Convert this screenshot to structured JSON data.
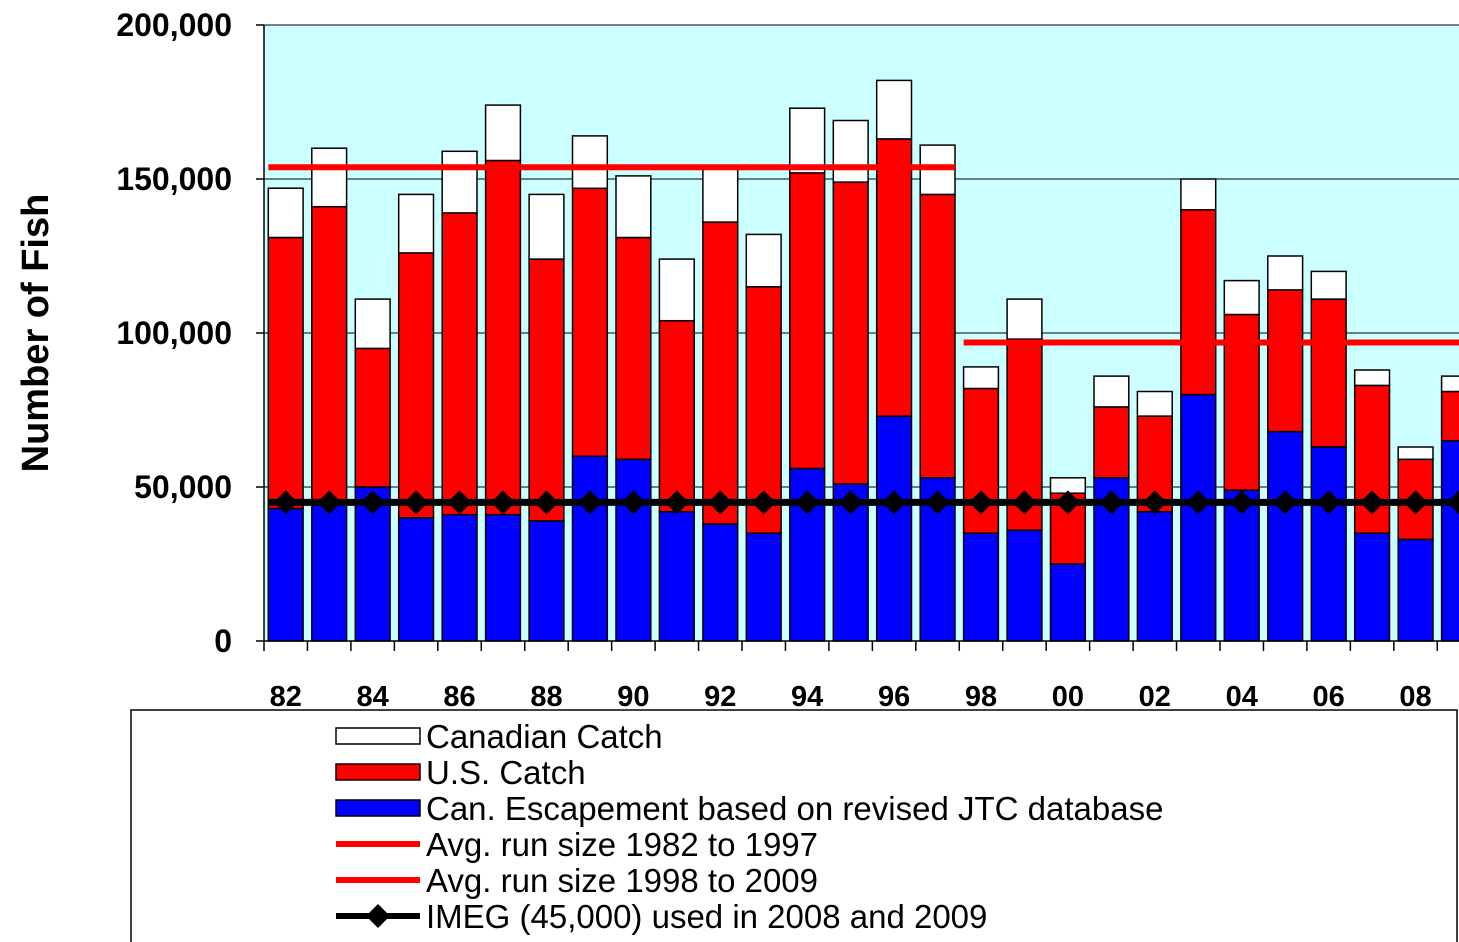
{
  "chart_data": {
    "type": "bar",
    "stacked": true,
    "title": "",
    "xlabel": "",
    "ylabel": "Number of Fish",
    "ylim": [
      0,
      200000
    ],
    "yticks": [
      0,
      50000,
      100000,
      150000,
      200000
    ],
    "ytick_labels": [
      "0",
      "50,000",
      "100,000",
      "150,000",
      "200,000"
    ],
    "grid": "horizontal",
    "plot_background": "#ccffff",
    "categories": [
      "82",
      "83",
      "84",
      "85",
      "86",
      "87",
      "88",
      "89",
      "90",
      "91",
      "92",
      "93",
      "94",
      "95",
      "96",
      "97",
      "98",
      "99",
      "00",
      "01",
      "02",
      "03",
      "04",
      "05",
      "06",
      "07",
      "08",
      "09"
    ],
    "x_tick_labels": [
      "82",
      "",
      "84",
      "",
      "86",
      "",
      "88",
      "",
      "90",
      "",
      "92",
      "",
      "94",
      "",
      "96",
      "",
      "98",
      "",
      "00",
      "",
      "02",
      "",
      "04",
      "",
      "06",
      "",
      "08",
      ""
    ],
    "series": [
      {
        "name": "Can. Escapement based on revised JTC database",
        "color": "#0000ff",
        "values": [
          43000,
          45000,
          50000,
          40000,
          41000,
          41000,
          39000,
          60000,
          59000,
          42000,
          38000,
          35000,
          56000,
          51000,
          73000,
          53000,
          35000,
          36000,
          25000,
          53000,
          42000,
          80000,
          49000,
          68000,
          63000,
          35000,
          33000,
          65000
        ]
      },
      {
        "name": "U.S. Catch",
        "color": "#ff0000",
        "values": [
          88000,
          96000,
          45000,
          86000,
          98000,
          115000,
          85000,
          87000,
          72000,
          62000,
          98000,
          80000,
          96000,
          98000,
          90000,
          92000,
          47000,
          62000,
          23000,
          23000,
          31000,
          60000,
          57000,
          46000,
          48000,
          48000,
          26000,
          16000
        ]
      },
      {
        "name": "Canadian Catch",
        "color": "#ffffff",
        "values": [
          16000,
          19000,
          16000,
          19000,
          20000,
          18000,
          21000,
          17000,
          20000,
          20000,
          18000,
          17000,
          21000,
          20000,
          19000,
          16000,
          7000,
          13000,
          5000,
          10000,
          8000,
          10000,
          11000,
          11000,
          9000,
          5000,
          4000,
          5000
        ]
      }
    ],
    "lines": [
      {
        "name": "Avg. run size 1982 to 1997",
        "color": "#ff0000",
        "value": 153800,
        "from": "82",
        "to": "97"
      },
      {
        "name": "Avg. run size 1998 to 2009",
        "color": "#ff0000",
        "value": 96900,
        "from": "98",
        "to": "09"
      },
      {
        "name": "IMEG (45,000) used in 2008 and 2009",
        "color": "#000000",
        "value": 45000,
        "from": "82",
        "to": "09",
        "marker": "diamond"
      }
    ],
    "legend": {
      "placement": "bottom",
      "entries": [
        {
          "label": "Canadian Catch",
          "kind": "box",
          "color": "#ffffff"
        },
        {
          "label": "U.S. Catch",
          "kind": "box",
          "color": "#ff0000"
        },
        {
          "label": "Can. Escapement based on revised JTC database",
          "kind": "box",
          "color": "#0000ff"
        },
        {
          "label": "Avg. run size 1982 to 1997",
          "kind": "line",
          "color": "#ff0000"
        },
        {
          "label": "Avg. run size 1998 to 2009",
          "kind": "line",
          "color": "#ff0000"
        },
        {
          "label": "IMEG (45,000) used in 2008 and 2009",
          "kind": "line-diamond",
          "color": "#000000"
        }
      ]
    }
  }
}
